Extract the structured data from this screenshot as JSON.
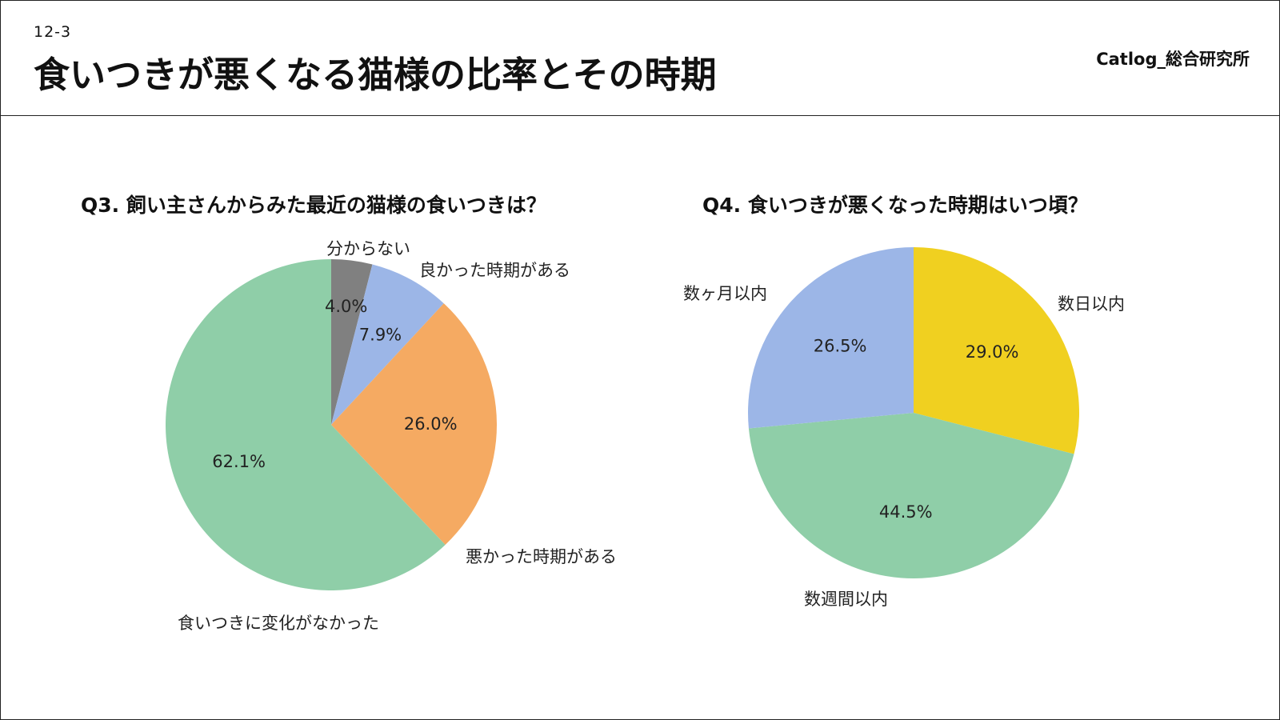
{
  "header": {
    "slide_number": "12-3",
    "title": "食いつきが悪くなる猫様の比率とその時期",
    "brand": "Catlog_総合研究所"
  },
  "chart_data": [
    {
      "type": "pie",
      "title": "Q3. 飼い主さんからみた最近の猫様の食いつきは？",
      "start": "top, clockwise",
      "slices": [
        {
          "label": "分からない",
          "value": 4.0,
          "pct_text": "4.0%",
          "color": "#808080"
        },
        {
          "label": "良かった時期がある",
          "value": 7.9,
          "pct_text": "7.9%",
          "color": "#9cb6e7"
        },
        {
          "label": "悪かった時期がある",
          "value": 26.0,
          "pct_text": "26.0%",
          "color": "#f5aa62"
        },
        {
          "label": "食いつきに変化がなかった",
          "value": 62.1,
          "pct_text": "62.1%",
          "color": "#8fcea8"
        }
      ]
    },
    {
      "type": "pie",
      "title": "Q4. 食いつきが悪くなった時期はいつ頃？",
      "start": "top, clockwise",
      "slices": [
        {
          "label": "数日以内",
          "value": 29.0,
          "pct_text": "29.0%",
          "color": "#f0d020"
        },
        {
          "label": "数週間以内",
          "value": 44.5,
          "pct_text": "44.5%",
          "color": "#8fcea8"
        },
        {
          "label": "数ヶ月以内",
          "value": 26.5,
          "pct_text": "26.5%",
          "color": "#9cb6e7"
        }
      ]
    }
  ]
}
